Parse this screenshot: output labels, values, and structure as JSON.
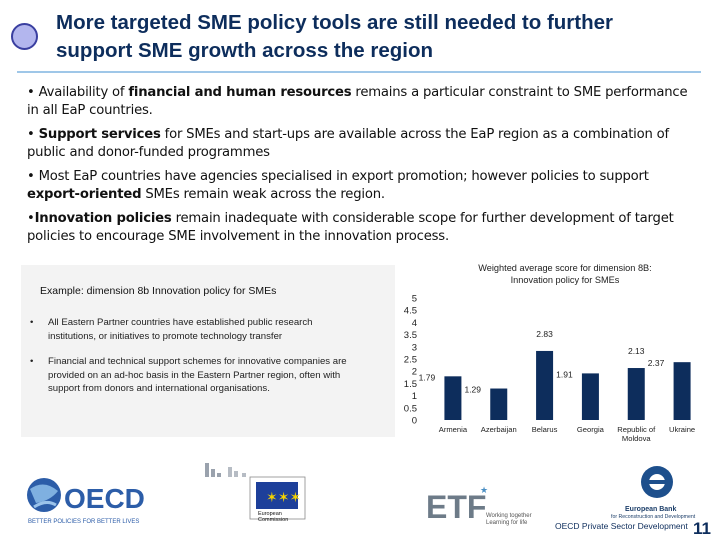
{
  "header": {
    "title_line1": "More targeted SME policy tools are still needed to further",
    "title_line2": "support SME growth across the region"
  },
  "bullets": [
    {
      "prefix": "• Availability of ",
      "bold": "financial and human resources",
      "rest": " remains a particular constraint to SME performance in all EaP countries."
    },
    {
      "prefix": "• ",
      "bold": "Support services",
      "rest": " for SMEs and start-ups are available across the EaP region as a combination of public and donor-funded programmes"
    },
    {
      "prefix": "• Most EaP countries have agencies specialised in export promotion; however policies to support ",
      "bold": "export-oriented",
      "rest": " SMEs remain weak across the region."
    },
    {
      "prefix": "•",
      "bold": "Innovation policies",
      "rest": " remain inadequate with considerable scope for further development of target policies to encourage SME involvement in the innovation process."
    }
  ],
  "example": {
    "title": "Example: dimension 8b Innovation policy for SMEs",
    "points": [
      "All Eastern Partner countries have established public research institutions, or initiatives to promote technology transfer",
      "Financial and technical support schemes for innovative companies are provided on an ad-hoc basis in the Eastern Partner region, often with support from donors and international organisations."
    ]
  },
  "chart_data": {
    "type": "bar",
    "title_line1": "Weighted average score for dimension 8B:",
    "title_line2": "Innovation policy for SMEs",
    "categories": [
      "Armenia",
      "Azerbaijan",
      "Belarus",
      "Georgia",
      "Republic of Moldova",
      "Ukraine"
    ],
    "category_lines": [
      [
        "Armenia"
      ],
      [
        "Azerbaijan"
      ],
      [
        "Belarus"
      ],
      [
        "Georgia"
      ],
      [
        "Republic of",
        "Moldova"
      ],
      [
        "Ukraine"
      ]
    ],
    "values": [
      1.79,
      1.29,
      2.83,
      1.91,
      2.13,
      2.37
    ],
    "value_labels": [
      "1.79",
      "1.29",
      "2.83",
      "1.91",
      "2.13",
      "2.37"
    ],
    "ylim": [
      0,
      5
    ],
    "yticks": [
      "0",
      "0.5",
      "1",
      "1.5",
      "2",
      "2.5",
      "3",
      "3.5",
      "4",
      "4.5",
      "5"
    ],
    "bar_color": "#0d2d5c"
  },
  "logos": {
    "oecd_name": "OECD",
    "oecd_tagline": "BETTER POLICIES FOR BETTER LIVES",
    "ec_name_line1": "European",
    "ec_name_line2": "Commission",
    "etf_name": "ETF",
    "etf_tagline_line1": "Working together",
    "etf_tagline_line2": "Learning for life",
    "ebrd_name_line1": "European Bank",
    "ebrd_name_line2": "for Reconstruction and Development"
  },
  "footer": {
    "note": "OECD Private Sector Development",
    "page_number": "11"
  }
}
